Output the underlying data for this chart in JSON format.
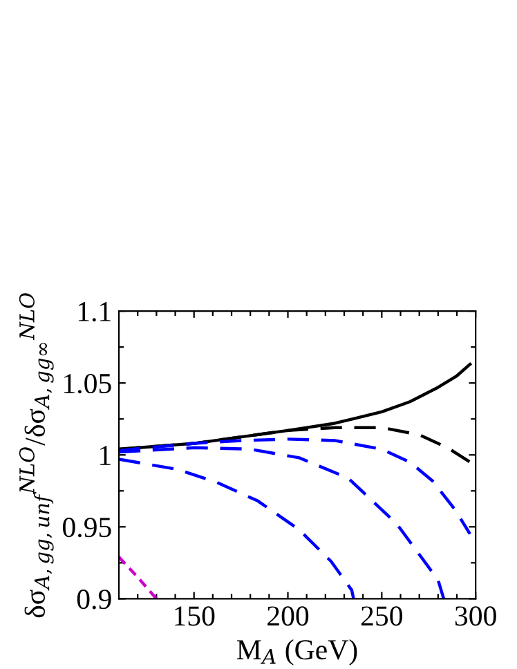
{
  "chart_data": {
    "type": "line",
    "xlabel": "M$_{A}$ (GeV)",
    "ylabel": "δσ$_{A,gg,unf}$$^{NLO}$/δσ$_{A,gg∞}$$^{NLO}$",
    "xlim": [
      110,
      300
    ],
    "ylim": [
      0.9,
      1.1
    ],
    "xticks": [
      {
        "value": 120,
        "label": null
      },
      {
        "value": 130,
        "label": null
      },
      {
        "value": 140,
        "label": null
      },
      150,
      {
        "value": 160,
        "label": null
      },
      {
        "value": 170,
        "label": null
      },
      {
        "value": 180,
        "label": null
      },
      {
        "value": 190,
        "label": null
      },
      200,
      {
        "value": 210,
        "label": null
      },
      {
        "value": 220,
        "label": null
      },
      {
        "value": 230,
        "label": null
      },
      {
        "value": 240,
        "label": null
      },
      250,
      {
        "value": 260,
        "label": null
      },
      {
        "value": 270,
        "label": null
      },
      {
        "value": 280,
        "label": null
      },
      {
        "value": 290,
        "label": null
      },
      300
    ],
    "yticks": [
      0.9,
      {
        "value": 0.925,
        "label": null
      },
      0.95,
      {
        "value": 0.975,
        "label": null
      },
      1,
      {
        "value": 1.025,
        "label": null
      },
      1.05,
      {
        "value": 1.075,
        "label": null
      },
      1.1
    ],
    "grid": false,
    "legend": false,
    "series": [
      {
        "color": "#000000",
        "line_style": "solid",
        "x": [
          110,
          150,
          200,
          225,
          250,
          265,
          280,
          290,
          297
        ],
        "values": [
          1.004,
          1.008,
          1.017,
          1.022,
          1.03,
          1.037,
          1.047,
          1.055,
          1.063
        ]
      },
      {
        "color": "#000000",
        "line_style": "dashed",
        "x": [
          110,
          150,
          200,
          225,
          250,
          270,
          285,
          297
        ],
        "values": [
          1.004,
          1.008,
          1.017,
          1.019,
          1.019,
          1.014,
          1.005,
          0.995
        ]
      },
      {
        "color": "#0000ff",
        "line_style": "dashed",
        "x": [
          110,
          150,
          175,
          200,
          225,
          250,
          265,
          277,
          289,
          297
        ],
        "values": [
          1.003,
          1.008,
          1.01,
          1.011,
          1.01,
          1.004,
          0.995,
          0.982,
          0.962,
          0.945
        ]
      },
      {
        "color": "#0000ff",
        "line_style": "dashed",
        "x": [
          110,
          150,
          180,
          206,
          232,
          245,
          258,
          271,
          280,
          283
        ],
        "values": [
          1.002,
          1.005,
          1.004,
          0.998,
          0.984,
          0.968,
          0.952,
          0.929,
          0.913,
          0.9
        ]
      },
      {
        "color": "#0000ff",
        "line_style": "dashed",
        "x": [
          110,
          141,
          162,
          184,
          206,
          223,
          234,
          235
        ],
        "values": [
          0.997,
          0.99,
          0.981,
          0.968,
          0.948,
          0.926,
          0.906,
          0.9
        ]
      },
      {
        "color": "#cc00cc",
        "line_style": "dotted",
        "x": [
          110,
          120,
          130
        ],
        "values": [
          0.929,
          0.915,
          0.9
        ]
      }
    ]
  }
}
